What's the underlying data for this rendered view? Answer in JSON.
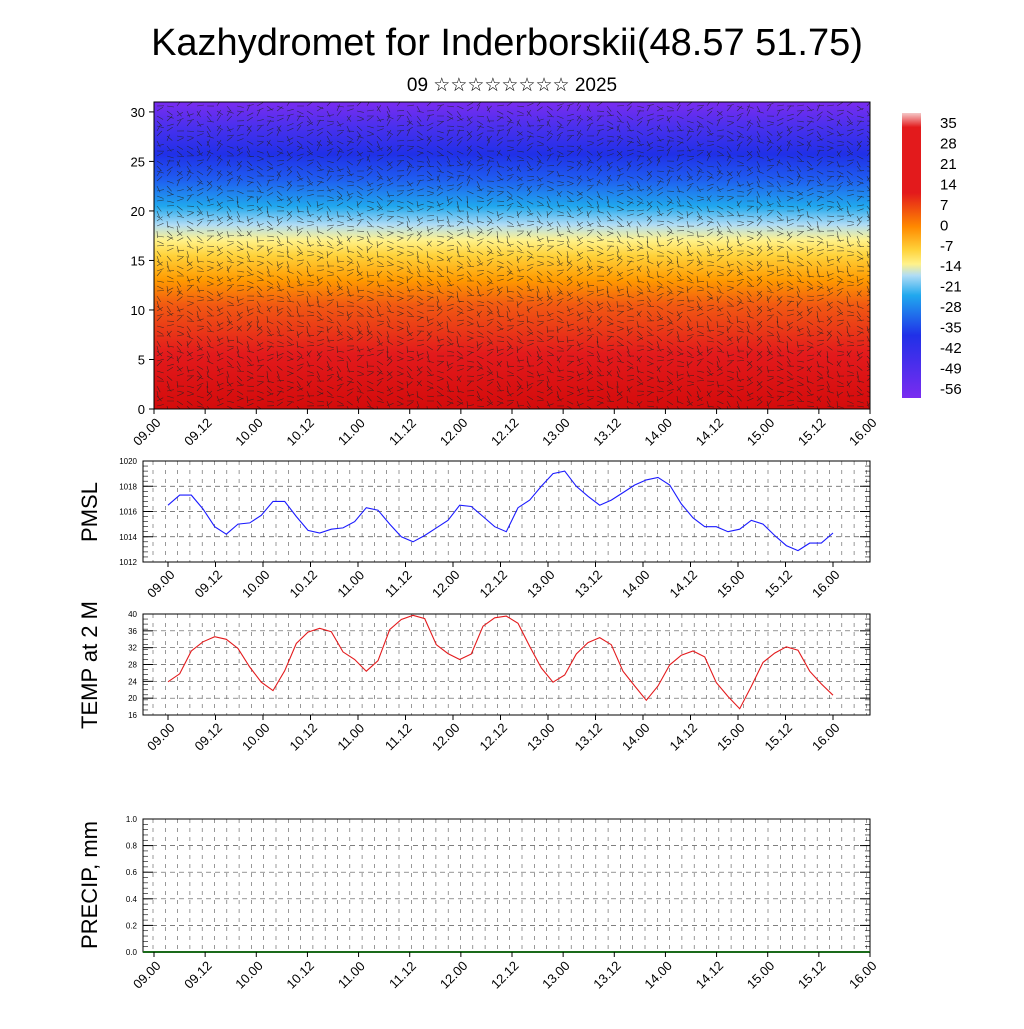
{
  "title": "Kazhydromet for Inderborskii(48.57 51.75)",
  "subtitle": "09 ☆☆☆☆☆☆☆☆ 2025",
  "chart_data": [
    {
      "type": "heatmap",
      "id": "cross-section",
      "x_ticks": [
        "09.00",
        "09.12",
        "10.00",
        "10.12",
        "11.00",
        "11.12",
        "12.00",
        "12.12",
        "13.00",
        "13.12",
        "14.00",
        "14.12",
        "15.00",
        "15.12",
        "16.00"
      ],
      "y_ticks": [
        "0",
        "5",
        "10",
        "15",
        "20",
        "25",
        "30"
      ],
      "ylim": [
        0,
        31
      ],
      "colorbar_labels": [
        "35",
        "28",
        "21",
        "14",
        "7",
        "0",
        "-7",
        "-14",
        "-21",
        "-28",
        "-35",
        "-42",
        "-49",
        "-56"
      ],
      "colors": {
        "hot": "#f5c8c8",
        "red": "#e31a1c",
        "orange": "#ff9a00",
        "yellow": "#ffee55",
        "lightblue": "#b0dcf5",
        "cyan": "#20a8ee",
        "blue": "#2030e8",
        "violet": "#7a2cf0"
      }
    },
    {
      "type": "line",
      "id": "pmsl",
      "ylabel": "PMSL",
      "ylim": [
        1012,
        1020
      ],
      "y_ticks": [
        "1012",
        "1014",
        "1016",
        "1018",
        "1020"
      ],
      "x_ticks": [
        "09.00",
        "09.12",
        "10.00",
        "10.12",
        "11.00",
        "11.12",
        "12.00",
        "12.12",
        "13.00",
        "13.12",
        "14.00",
        "14.12",
        "15.00",
        "15.12",
        "16.00"
      ],
      "values": [
        1016.5,
        1017.3,
        1017.3,
        1016.2,
        1014.8,
        1014.2,
        1015.0,
        1015.1,
        1015.7,
        1016.8,
        1016.8,
        1015.6,
        1014.5,
        1014.3,
        1014.6,
        1014.7,
        1015.2,
        1016.3,
        1016.1,
        1015.0,
        1014.0,
        1013.6,
        1014.1,
        1014.7,
        1015.3,
        1016.5,
        1016.4,
        1015.6,
        1014.8,
        1014.4,
        1016.3,
        1016.9,
        1018.0,
        1019.0,
        1019.2,
        1018.0,
        1017.2,
        1016.5,
        1016.9,
        1017.5,
        1018.1,
        1018.5,
        1018.7,
        1018.1,
        1016.6,
        1015.5,
        1014.8,
        1014.8,
        1014.4,
        1014.6,
        1015.3,
        1015.0,
        1014.1,
        1013.3,
        1012.9,
        1013.5,
        1013.5,
        1014.3
      ],
      "line_color": "#1a1aff"
    },
    {
      "type": "line",
      "id": "temp",
      "ylabel": "TEMP at 2 M",
      "ylim": [
        16,
        40
      ],
      "y_ticks": [
        "16",
        "20",
        "24",
        "28",
        "32",
        "36",
        "40"
      ],
      "x_ticks": [
        "09.00",
        "09.12",
        "10.00",
        "10.12",
        "11.00",
        "11.12",
        "12.00",
        "12.12",
        "13.00",
        "13.12",
        "14.00",
        "14.12",
        "15.00",
        "15.12",
        "16.00"
      ],
      "values": [
        23.9,
        25.8,
        31.2,
        33.4,
        34.6,
        34.0,
        31.8,
        27.4,
        23.8,
        21.8,
        26.5,
        33.0,
        35.7,
        36.6,
        35.8,
        31.0,
        29.2,
        26.4,
        28.9,
        36.3,
        38.7,
        39.7,
        38.9,
        32.7,
        30.6,
        29.2,
        30.5,
        37.1,
        39.1,
        39.5,
        37.8,
        32.3,
        27.2,
        23.8,
        25.5,
        30.5,
        33.2,
        34.4,
        32.7,
        26.4,
        22.9,
        19.5,
        22.9,
        27.9,
        30.2,
        31.2,
        29.8,
        23.7,
        20.4,
        17.5,
        22.8,
        28.5,
        30.7,
        32.2,
        31.4,
        26.4,
        23.4,
        20.7
      ],
      "line_color": "#e31a1c"
    },
    {
      "type": "bar",
      "id": "precip",
      "ylabel": "PRECIP, mm",
      "ylim": [
        0,
        1
      ],
      "y_ticks": [
        "0.0",
        "0.2",
        "0.4",
        "0.6",
        "0.8",
        "1.0"
      ],
      "x_ticks": [
        "09.00",
        "09.12",
        "10.00",
        "10.12",
        "11.00",
        "11.12",
        "12.00",
        "12.12",
        "13.00",
        "13.12",
        "14.00",
        "14.12",
        "15.00",
        "15.12",
        "16.00"
      ],
      "values": [
        0,
        0,
        0,
        0,
        0,
        0,
        0,
        0,
        0,
        0,
        0,
        0,
        0,
        0,
        0,
        0,
        0,
        0,
        0,
        0,
        0,
        0,
        0,
        0,
        0,
        0,
        0,
        0,
        0,
        0,
        0,
        0,
        0,
        0,
        0,
        0,
        0,
        0,
        0,
        0,
        0,
        0,
        0,
        0,
        0,
        0,
        0,
        0,
        0,
        0,
        0,
        0,
        0,
        0,
        0,
        0,
        0,
        0
      ]
    }
  ]
}
